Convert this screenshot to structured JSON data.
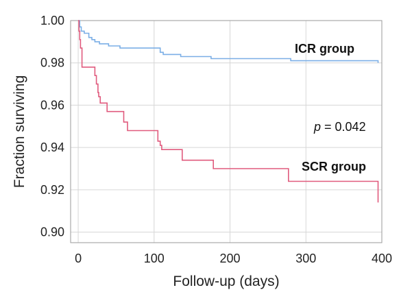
{
  "chart_data": {
    "type": "line",
    "title": "",
    "xlabel": "Follow-up (days)",
    "ylabel": "Fraction  surviving",
    "xlim": [
      -10,
      400
    ],
    "ylim": [
      0.895,
      1.0
    ],
    "xticks": [
      0,
      100,
      200,
      300,
      400
    ],
    "yticks": [
      0.9,
      0.92,
      0.94,
      0.96,
      0.98,
      1.0
    ],
    "xtick_labels": [
      "0",
      "100",
      "200",
      "300",
      "400"
    ],
    "ytick_labels": [
      "0.90",
      "0.92",
      "0.94",
      "0.96",
      "0.98",
      "1.00"
    ],
    "grid": true,
    "step": true,
    "series": [
      {
        "name": "ICR group",
        "color": "#7aaee6",
        "x": [
          0,
          2,
          4,
          8,
          14,
          18,
          22,
          28,
          40,
          55,
          65,
          108,
          112,
          135,
          175,
          280,
          395
        ],
        "y": [
          1.0,
          0.997,
          0.995,
          0.994,
          0.992,
          0.991,
          0.99,
          0.989,
          0.988,
          0.987,
          0.987,
          0.985,
          0.984,
          0.983,
          0.982,
          0.981,
          0.98
        ]
      },
      {
        "name": "SCR group",
        "color": "#e05a7d",
        "x": [
          0,
          1,
          2,
          3,
          5,
          22,
          24,
          26,
          27,
          29,
          38,
          60,
          65,
          68,
          105,
          108,
          110,
          137,
          178,
          277,
          393,
          395
        ],
        "y": [
          1.0,
          0.995,
          0.991,
          0.987,
          0.978,
          0.974,
          0.97,
          0.966,
          0.964,
          0.961,
          0.957,
          0.952,
          0.948,
          0.948,
          0.943,
          0.941,
          0.939,
          0.934,
          0.93,
          0.924,
          0.924,
          0.914
        ]
      }
    ],
    "annotations": {
      "p_label": "p",
      "p_value": " = 0.042"
    }
  }
}
